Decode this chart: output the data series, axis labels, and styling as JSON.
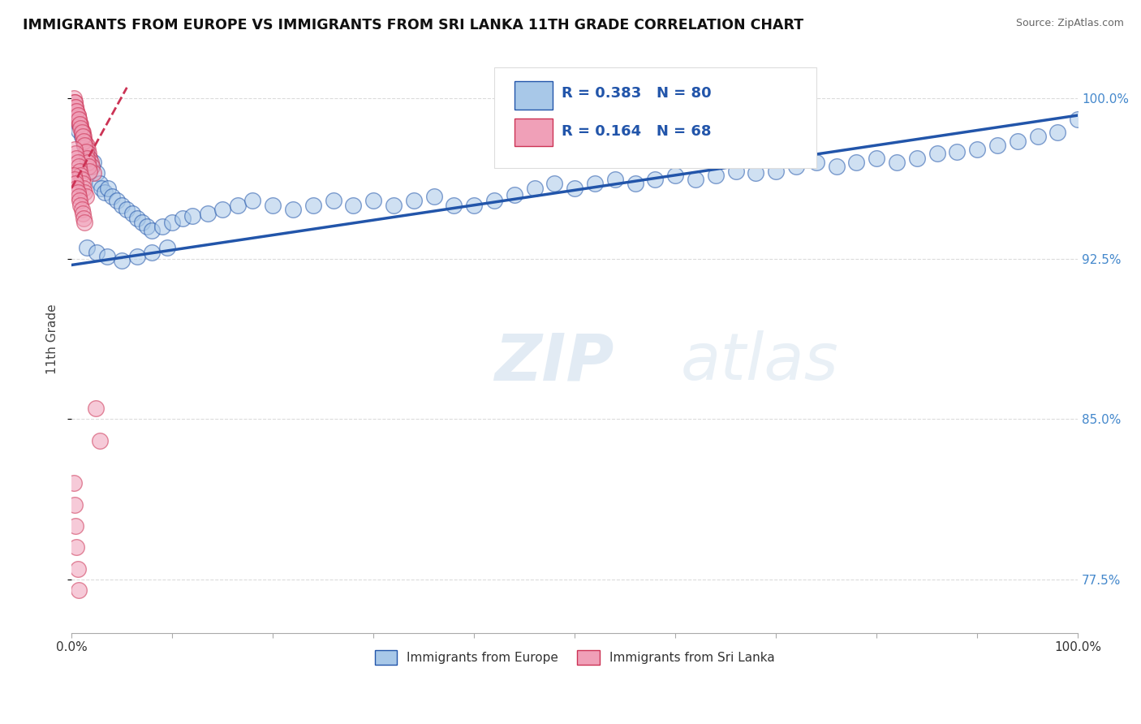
{
  "title": "IMMIGRANTS FROM EUROPE VS IMMIGRANTS FROM SRI LANKA 11TH GRADE CORRELATION CHART",
  "source": "Source: ZipAtlas.com",
  "ylabel": "11th Grade",
  "watermark_zip": "ZIP",
  "watermark_atlas": "atlas",
  "legend_europe": "Immigrants from Europe",
  "legend_srilanka": "Immigrants from Sri Lanka",
  "R_europe": 0.383,
  "N_europe": 80,
  "R_srilanka": 0.164,
  "N_srilanka": 68,
  "color_europe": "#A8C8E8",
  "color_srilanka": "#F0A0B8",
  "color_trendline_europe": "#2255AA",
  "color_trendline_srilanka": "#CC3355",
  "xlim": [
    0.0,
    1.0
  ],
  "ylim": [
    0.75,
    1.025
  ],
  "yticks": [
    0.775,
    0.85,
    0.925,
    1.0
  ],
  "ytick_labels": [
    "77.5%",
    "85.0%",
    "92.5%",
    "100.0%"
  ],
  "blue_line_x0": 0.0,
  "blue_line_y0": 0.922,
  "blue_line_x1": 1.0,
  "blue_line_y1": 0.992,
  "pink_line_x0": 0.0,
  "pink_line_y0": 0.958,
  "pink_line_x1": 0.055,
  "pink_line_y1": 1.005,
  "europe_x": [
    0.005,
    0.007,
    0.008,
    0.01,
    0.012,
    0.013,
    0.015,
    0.018,
    0.02,
    0.022,
    0.025,
    0.028,
    0.03,
    0.033,
    0.036,
    0.04,
    0.045,
    0.05,
    0.055,
    0.06,
    0.065,
    0.07,
    0.075,
    0.08,
    0.09,
    0.1,
    0.11,
    0.12,
    0.135,
    0.15,
    0.165,
    0.18,
    0.2,
    0.22,
    0.24,
    0.26,
    0.28,
    0.3,
    0.32,
    0.34,
    0.36,
    0.38,
    0.4,
    0.42,
    0.44,
    0.46,
    0.48,
    0.5,
    0.52,
    0.54,
    0.56,
    0.58,
    0.6,
    0.62,
    0.64,
    0.66,
    0.68,
    0.7,
    0.72,
    0.74,
    0.76,
    0.78,
    0.8,
    0.82,
    0.84,
    0.86,
    0.88,
    0.9,
    0.92,
    0.94,
    0.96,
    0.98,
    1.0,
    0.015,
    0.025,
    0.035,
    0.05,
    0.065,
    0.08,
    0.095
  ],
  "europe_y": [
    0.99,
    0.985,
    0.988,
    0.982,
    0.98,
    0.978,
    0.975,
    0.972,
    0.968,
    0.97,
    0.965,
    0.96,
    0.958,
    0.956,
    0.958,
    0.954,
    0.952,
    0.95,
    0.948,
    0.946,
    0.944,
    0.942,
    0.94,
    0.938,
    0.94,
    0.942,
    0.944,
    0.945,
    0.946,
    0.948,
    0.95,
    0.952,
    0.95,
    0.948,
    0.95,
    0.952,
    0.95,
    0.952,
    0.95,
    0.952,
    0.954,
    0.95,
    0.95,
    0.952,
    0.955,
    0.958,
    0.96,
    0.958,
    0.96,
    0.962,
    0.96,
    0.962,
    0.964,
    0.962,
    0.964,
    0.966,
    0.965,
    0.966,
    0.968,
    0.97,
    0.968,
    0.97,
    0.972,
    0.97,
    0.972,
    0.974,
    0.975,
    0.976,
    0.978,
    0.98,
    0.982,
    0.984,
    0.99,
    0.93,
    0.928,
    0.926,
    0.924,
    0.926,
    0.928,
    0.93
  ],
  "srilanka_x": [
    0.002,
    0.003,
    0.004,
    0.005,
    0.006,
    0.007,
    0.008,
    0.009,
    0.01,
    0.011,
    0.012,
    0.013,
    0.014,
    0.015,
    0.016,
    0.017,
    0.018,
    0.019,
    0.02,
    0.022,
    0.003,
    0.004,
    0.005,
    0.006,
    0.007,
    0.008,
    0.009,
    0.01,
    0.011,
    0.012,
    0.013,
    0.014,
    0.015,
    0.016,
    0.017,
    0.018,
    0.003,
    0.004,
    0.005,
    0.006,
    0.007,
    0.008,
    0.009,
    0.01,
    0.011,
    0.012,
    0.013,
    0.014,
    0.002,
    0.003,
    0.004,
    0.005,
    0.006,
    0.007,
    0.008,
    0.009,
    0.01,
    0.011,
    0.012,
    0.013,
    0.002,
    0.003,
    0.004,
    0.005,
    0.006,
    0.007,
    0.024,
    0.028
  ],
  "srilanka_y": [
    1.0,
    0.998,
    0.996,
    0.994,
    0.992,
    0.99,
    0.988,
    0.988,
    0.985,
    0.984,
    0.982,
    0.98,
    0.978,
    0.978,
    0.976,
    0.974,
    0.972,
    0.97,
    0.968,
    0.965,
    0.998,
    0.996,
    0.994,
    0.992,
    0.99,
    0.988,
    0.986,
    0.984,
    0.982,
    0.98,
    0.978,
    0.975,
    0.972,
    0.97,
    0.968,
    0.966,
    0.976,
    0.974,
    0.972,
    0.97,
    0.968,
    0.966,
    0.964,
    0.962,
    0.96,
    0.958,
    0.956,
    0.954,
    0.964,
    0.962,
    0.96,
    0.958,
    0.956,
    0.954,
    0.952,
    0.95,
    0.948,
    0.946,
    0.944,
    0.942,
    0.82,
    0.81,
    0.8,
    0.79,
    0.78,
    0.77,
    0.855,
    0.84
  ]
}
